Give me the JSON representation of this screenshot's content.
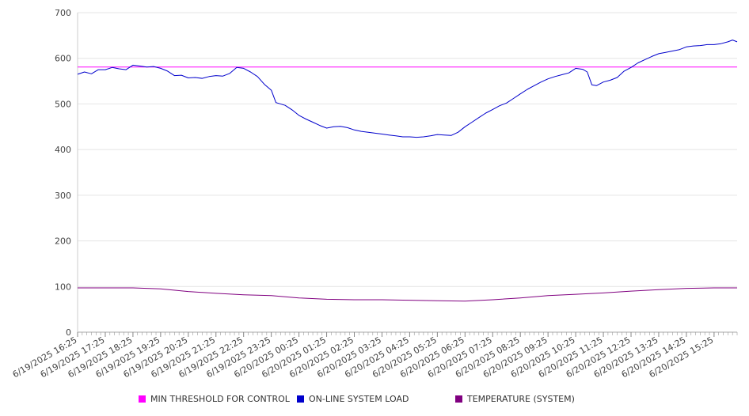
{
  "chart_data": {
    "type": "line",
    "title": "",
    "xlabel": "",
    "ylabel": "",
    "ylim": [
      0,
      700
    ],
    "yticks": [
      0,
      100,
      200,
      300,
      400,
      500,
      600,
      700
    ],
    "grid": true,
    "legend_position": "bottom",
    "x_tick_labels": [
      "6/19/2025 16:25",
      "6/19/2025 17:25",
      "6/19/2025 18:25",
      "6/19/2025 19:25",
      "6/19/2025 20:25",
      "6/19/2025 21:25",
      "6/19/2025 22:25",
      "6/19/2025 23:25",
      "6/20/2025 00:25",
      "6/20/2025 01:25",
      "6/20/2025 02:25",
      "6/20/2025 03:25",
      "6/20/2025 04:25",
      "6/20/2025 05:25",
      "6/20/2025 06:25",
      "6/20/2025 07:25",
      "6/20/2025 08:25",
      "6/20/2025 09:25",
      "6/20/2025 10:25",
      "6/20/2025 11:25",
      "6/20/2025 12:25",
      "6/20/2025 13:25",
      "6/20/2025 14:25",
      "6/20/2025 15:25"
    ],
    "x_start": "6/19/2025 16:25",
    "x_end": "6/20/2025 16:15",
    "series": [
      {
        "name": "MIN THRESHOLD FOR CONTROL",
        "color": "#ff00ff",
        "points": [
          [
            "6/19/2025 16:25",
            581
          ],
          [
            "6/20/2025 16:15",
            581
          ]
        ]
      },
      {
        "name": "ON-LINE SYSTEM LOAD",
        "color": "#0000cc",
        "points": [
          [
            "6/19/2025 16:25",
            565
          ],
          [
            "6/19/2025 16:40",
            570
          ],
          [
            "6/19/2025 16:55",
            566
          ],
          [
            "6/19/2025 17:10",
            575
          ],
          [
            "6/19/2025 17:25",
            575
          ],
          [
            "6/19/2025 17:40",
            580
          ],
          [
            "6/19/2025 17:55",
            577
          ],
          [
            "6/19/2025 18:10",
            575
          ],
          [
            "6/19/2025 18:25",
            585
          ],
          [
            "6/19/2025 18:40",
            583
          ],
          [
            "6/19/2025 18:55",
            581
          ],
          [
            "6/19/2025 19:10",
            582
          ],
          [
            "6/19/2025 19:25",
            578
          ],
          [
            "6/19/2025 19:40",
            572
          ],
          [
            "6/19/2025 19:55",
            562
          ],
          [
            "6/19/2025 20:10",
            563
          ],
          [
            "6/19/2025 20:25",
            557
          ],
          [
            "6/19/2025 20:40",
            558
          ],
          [
            "6/19/2025 20:55",
            556
          ],
          [
            "6/19/2025 21:10",
            560
          ],
          [
            "6/19/2025 21:25",
            562
          ],
          [
            "6/19/2025 21:40",
            561
          ],
          [
            "6/19/2025 21:55",
            567
          ],
          [
            "6/19/2025 22:10",
            580
          ],
          [
            "6/19/2025 22:25",
            578
          ],
          [
            "6/19/2025 22:40",
            570
          ],
          [
            "6/19/2025 22:55",
            560
          ],
          [
            "6/19/2025 23:10",
            543
          ],
          [
            "6/19/2025 23:25",
            530
          ],
          [
            "6/19/2025 23:35",
            503
          ],
          [
            "6/19/2025 23:55",
            497
          ],
          [
            "6/20/2025 00:10",
            487
          ],
          [
            "6/20/2025 00:25",
            475
          ],
          [
            "6/20/2025 00:40",
            467
          ],
          [
            "6/20/2025 00:55",
            460
          ],
          [
            "6/20/2025 01:10",
            453
          ],
          [
            "6/20/2025 01:25",
            447
          ],
          [
            "6/20/2025 01:40",
            450
          ],
          [
            "6/20/2025 01:55",
            451
          ],
          [
            "6/20/2025 02:10",
            448
          ],
          [
            "6/20/2025 02:25",
            443
          ],
          [
            "6/20/2025 02:40",
            440
          ],
          [
            "6/20/2025 02:55",
            438
          ],
          [
            "6/20/2025 03:10",
            436
          ],
          [
            "6/20/2025 03:25",
            434
          ],
          [
            "6/20/2025 03:40",
            432
          ],
          [
            "6/20/2025 03:55",
            430
          ],
          [
            "6/20/2025 04:10",
            428
          ],
          [
            "6/20/2025 04:25",
            428
          ],
          [
            "6/20/2025 04:40",
            427
          ],
          [
            "6/20/2025 04:55",
            428
          ],
          [
            "6/20/2025 05:10",
            430
          ],
          [
            "6/20/2025 05:25",
            433
          ],
          [
            "6/20/2025 05:40",
            432
          ],
          [
            "6/20/2025 05:55",
            431
          ],
          [
            "6/20/2025 06:10",
            438
          ],
          [
            "6/20/2025 06:25",
            450
          ],
          [
            "6/20/2025 06:40",
            460
          ],
          [
            "6/20/2025 06:55",
            470
          ],
          [
            "6/20/2025 07:10",
            480
          ],
          [
            "6/20/2025 07:25",
            488
          ],
          [
            "6/20/2025 07:40",
            496
          ],
          [
            "6/20/2025 07:55",
            502
          ],
          [
            "6/20/2025 08:10",
            512
          ],
          [
            "6/20/2025 08:25",
            522
          ],
          [
            "6/20/2025 08:40",
            532
          ],
          [
            "6/20/2025 08:55",
            540
          ],
          [
            "6/20/2025 09:10",
            548
          ],
          [
            "6/20/2025 09:25",
            555
          ],
          [
            "6/20/2025 09:40",
            560
          ],
          [
            "6/20/2025 09:55",
            564
          ],
          [
            "6/20/2025 10:10",
            568
          ],
          [
            "6/20/2025 10:25",
            578
          ],
          [
            "6/20/2025 10:40",
            576
          ],
          [
            "6/20/2025 10:50",
            570
          ],
          [
            "6/20/2025 11:00",
            542
          ],
          [
            "6/20/2025 11:10",
            540
          ],
          [
            "6/20/2025 11:25",
            548
          ],
          [
            "6/20/2025 11:40",
            552
          ],
          [
            "6/20/2025 11:55",
            558
          ],
          [
            "6/20/2025 12:10",
            572
          ],
          [
            "6/20/2025 12:25",
            580
          ],
          [
            "6/20/2025 12:40",
            590
          ],
          [
            "6/20/2025 12:55",
            597
          ],
          [
            "6/20/2025 13:10",
            604
          ],
          [
            "6/20/2025 13:25",
            610
          ],
          [
            "6/20/2025 13:40",
            613
          ],
          [
            "6/20/2025 13:55",
            616
          ],
          [
            "6/20/2025 14:10",
            619
          ],
          [
            "6/20/2025 14:25",
            625
          ],
          [
            "6/20/2025 14:40",
            627
          ],
          [
            "6/20/2025 14:55",
            628
          ],
          [
            "6/20/2025 15:10",
            630
          ],
          [
            "6/20/2025 15:25",
            630
          ],
          [
            "6/20/2025 15:40",
            632
          ],
          [
            "6/20/2025 15:55",
            636
          ],
          [
            "6/20/2025 16:05",
            640
          ],
          [
            "6/20/2025 16:15",
            636
          ]
        ]
      },
      {
        "name": "TEMPERATURE (SYSTEM)",
        "color": "#800080",
        "points": [
          [
            "6/19/2025 16:25",
            97
          ],
          [
            "6/19/2025 17:25",
            97
          ],
          [
            "6/19/2025 18:25",
            97
          ],
          [
            "6/19/2025 19:25",
            95
          ],
          [
            "6/19/2025 20:25",
            89
          ],
          [
            "6/19/2025 21:25",
            85
          ],
          [
            "6/19/2025 22:25",
            82
          ],
          [
            "6/19/2025 23:25",
            80
          ],
          [
            "6/20/2025 00:25",
            75
          ],
          [
            "6/20/2025 01:25",
            72
          ],
          [
            "6/20/2025 02:25",
            71
          ],
          [
            "6/20/2025 03:25",
            71
          ],
          [
            "6/20/2025 04:25",
            70
          ],
          [
            "6/20/2025 05:25",
            69
          ],
          [
            "6/20/2025 06:25",
            68
          ],
          [
            "6/20/2025 07:25",
            71
          ],
          [
            "6/20/2025 08:25",
            75
          ],
          [
            "6/20/2025 09:25",
            80
          ],
          [
            "6/20/2025 10:25",
            83
          ],
          [
            "6/20/2025 11:25",
            86
          ],
          [
            "6/20/2025 12:25",
            90
          ],
          [
            "6/20/2025 13:25",
            93
          ],
          [
            "6/20/2025 14:25",
            96
          ],
          [
            "6/20/2025 15:25",
            97
          ],
          [
            "6/20/2025 16:15",
            97
          ]
        ]
      }
    ]
  }
}
